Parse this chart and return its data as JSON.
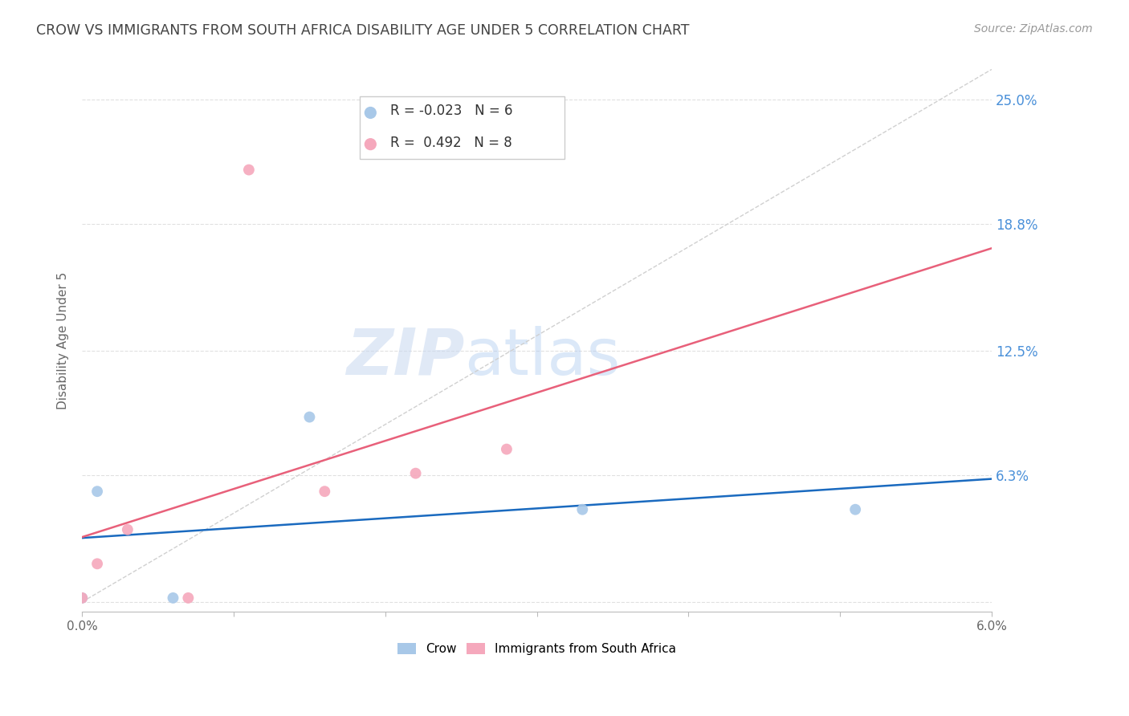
{
  "title": "CROW VS IMMIGRANTS FROM SOUTH AFRICA DISABILITY AGE UNDER 5 CORRELATION CHART",
  "source": "Source: ZipAtlas.com",
  "ylabel": "Disability Age Under 5",
  "xlim": [
    0.0,
    0.06
  ],
  "ylim": [
    -0.005,
    0.265
  ],
  "ytick_vals": [
    0.0,
    0.063,
    0.125,
    0.188,
    0.25
  ],
  "ytick_labels": [
    "",
    "6.3%",
    "12.5%",
    "18.8%",
    "25.0%"
  ],
  "xtick_vals": [
    0.0,
    0.01,
    0.02,
    0.03,
    0.04,
    0.05,
    0.06
  ],
  "xtick_labels": [
    "0.0%",
    "",
    "",
    "",
    "",
    "",
    "6.0%"
  ],
  "crow_x": [
    0.0,
    0.001,
    0.006,
    0.015,
    0.033,
    0.051
  ],
  "crow_y": [
    0.002,
    0.055,
    0.002,
    0.092,
    0.046,
    0.046
  ],
  "immigrants_x": [
    0.0,
    0.001,
    0.003,
    0.007,
    0.011,
    0.016,
    0.022,
    0.028
  ],
  "immigrants_y": [
    0.002,
    0.019,
    0.036,
    0.002,
    0.215,
    0.055,
    0.064,
    0.076
  ],
  "crow_color": "#a8c8e8",
  "immigrants_color": "#f5a8bc",
  "crow_line_color": "#1a6abf",
  "immigrants_line_color": "#e8607a",
  "diagonal_color": "#d0d0d0",
  "crow_R": -0.023,
  "crow_N": 6,
  "immigrants_R": 0.492,
  "immigrants_N": 8,
  "legend_crow_label": "Crow",
  "legend_immigrants_label": "Immigrants from South Africa",
  "watermark_zip": "ZIP",
  "watermark_atlas": "atlas",
  "background_color": "#ffffff",
  "grid_color": "#e0e0e0",
  "right_axis_color": "#4a90d9",
  "title_color": "#444444",
  "marker_size": 100
}
